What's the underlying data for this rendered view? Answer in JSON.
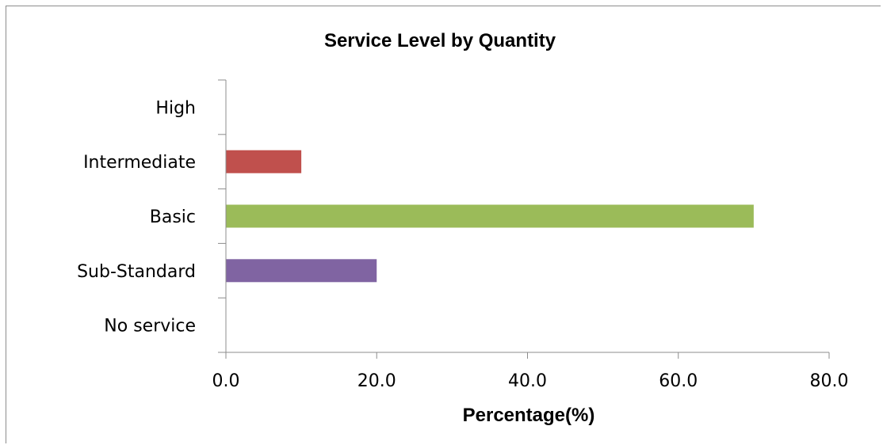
{
  "chart_data": {
    "type": "bar",
    "orientation": "horizontal",
    "title": "Service Level by Quantity",
    "xlabel": "Percentage(%)",
    "ylabel": "",
    "categories": [
      "High",
      "Intermediate",
      "Basic",
      "Sub-Standard",
      "No service"
    ],
    "values": [
      0.0,
      10.0,
      70.0,
      20.0,
      0.0
    ],
    "bar_colors": [
      "#4f81bd",
      "#c0504d",
      "#9bbb59",
      "#8064a2",
      "#4bacc6"
    ],
    "xlim": [
      0,
      80
    ],
    "x_ticks": [
      0,
      20,
      40,
      60,
      80
    ],
    "x_tick_labels": [
      "0.0",
      "20.0",
      "40.0",
      "60.0",
      "80.0"
    ],
    "grid": false,
    "legend": "none"
  }
}
